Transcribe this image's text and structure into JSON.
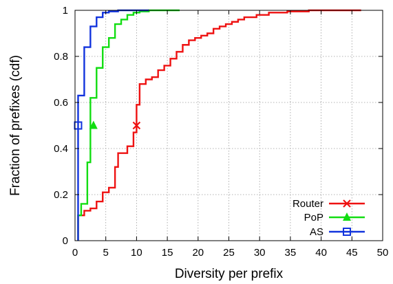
{
  "chart_data": {
    "type": "line",
    "title": "",
    "xlabel": "Diversity per prefix",
    "ylabel": "Fraction of prefixes (cdf)",
    "xlim": [
      0,
      50
    ],
    "ylim": [
      0,
      1
    ],
    "x_ticks": [
      0,
      5,
      10,
      15,
      20,
      25,
      30,
      35,
      40,
      45,
      50
    ],
    "y_ticks": [
      0,
      0.2,
      0.4,
      0.6,
      0.8,
      1
    ],
    "x_tick_labels": [
      "0",
      "5",
      "10",
      "15",
      "20",
      "25",
      "30",
      "35",
      "40",
      "45",
      "50"
    ],
    "y_tick_labels": [
      "0",
      "0.2",
      "0.4",
      "0.6",
      "0.8",
      "1"
    ],
    "grid": true,
    "legend_position": "bottom-right",
    "series": [
      {
        "name": "Router",
        "color": "#ee1111",
        "marker": "x",
        "marker_point": [
          10,
          0.5
        ],
        "points": [
          [
            0.5,
            0
          ],
          [
            0.5,
            0.11
          ],
          [
            1.5,
            0.11
          ],
          [
            1.5,
            0.13
          ],
          [
            2.5,
            0.13
          ],
          [
            2.5,
            0.14
          ],
          [
            3.5,
            0.14
          ],
          [
            3.5,
            0.17
          ],
          [
            4.5,
            0.17
          ],
          [
            4.5,
            0.21
          ],
          [
            5.5,
            0.21
          ],
          [
            5.5,
            0.23
          ],
          [
            6.5,
            0.23
          ],
          [
            6.5,
            0.32
          ],
          [
            7,
            0.32
          ],
          [
            7,
            0.38
          ],
          [
            8.5,
            0.38
          ],
          [
            8.5,
            0.41
          ],
          [
            9.5,
            0.41
          ],
          [
            9.5,
            0.47
          ],
          [
            10,
            0.47
          ],
          [
            10,
            0.59
          ],
          [
            10.5,
            0.59
          ],
          [
            10.5,
            0.68
          ],
          [
            11.5,
            0.68
          ],
          [
            11.5,
            0.7
          ],
          [
            12.5,
            0.7
          ],
          [
            12.5,
            0.71
          ],
          [
            13.5,
            0.71
          ],
          [
            13.5,
            0.74
          ],
          [
            14.5,
            0.74
          ],
          [
            14.5,
            0.76
          ],
          [
            15.5,
            0.76
          ],
          [
            15.5,
            0.79
          ],
          [
            16.5,
            0.79
          ],
          [
            16.5,
            0.82
          ],
          [
            17.5,
            0.82
          ],
          [
            17.5,
            0.85
          ],
          [
            18.5,
            0.85
          ],
          [
            18.5,
            0.87
          ],
          [
            19.5,
            0.87
          ],
          [
            19.5,
            0.88
          ],
          [
            20.5,
            0.88
          ],
          [
            20.5,
            0.89
          ],
          [
            21.5,
            0.89
          ],
          [
            21.5,
            0.9
          ],
          [
            22.5,
            0.9
          ],
          [
            22.5,
            0.92
          ],
          [
            23.5,
            0.92
          ],
          [
            23.5,
            0.93
          ],
          [
            24.5,
            0.93
          ],
          [
            24.5,
            0.94
          ],
          [
            25.5,
            0.94
          ],
          [
            25.5,
            0.95
          ],
          [
            26.5,
            0.95
          ],
          [
            26.5,
            0.96
          ],
          [
            27.5,
            0.96
          ],
          [
            27.5,
            0.97
          ],
          [
            29.5,
            0.97
          ],
          [
            29.5,
            0.98
          ],
          [
            31.5,
            0.98
          ],
          [
            31.5,
            0.99
          ],
          [
            34.5,
            0.99
          ],
          [
            34.5,
            0.995
          ],
          [
            38,
            0.995
          ],
          [
            38,
            1.0
          ],
          [
            46.5,
            1.0
          ]
        ]
      },
      {
        "name": "PoP",
        "color": "#11dd11",
        "marker": "triangle",
        "marker_point": [
          3,
          0.5
        ],
        "points": [
          [
            0.5,
            0
          ],
          [
            0.5,
            0.11
          ],
          [
            1,
            0.11
          ],
          [
            1,
            0.16
          ],
          [
            2,
            0.16
          ],
          [
            2,
            0.34
          ],
          [
            2.5,
            0.34
          ],
          [
            2.5,
            0.62
          ],
          [
            3.5,
            0.62
          ],
          [
            3.5,
            0.75
          ],
          [
            4.5,
            0.75
          ],
          [
            4.5,
            0.84
          ],
          [
            5.5,
            0.84
          ],
          [
            5.5,
            0.88
          ],
          [
            6.5,
            0.88
          ],
          [
            6.5,
            0.94
          ],
          [
            7.5,
            0.94
          ],
          [
            7.5,
            0.96
          ],
          [
            8.5,
            0.96
          ],
          [
            8.5,
            0.98
          ],
          [
            9.5,
            0.98
          ],
          [
            9.5,
            0.99
          ],
          [
            10.5,
            0.99
          ],
          [
            10.5,
            0.995
          ],
          [
            12,
            0.995
          ],
          [
            12,
            1.0
          ],
          [
            17,
            1.0
          ]
        ]
      },
      {
        "name": "AS",
        "color": "#1133dd",
        "marker": "square",
        "marker_point": [
          0.5,
          0.5
        ],
        "points": [
          [
            0.5,
            0
          ],
          [
            0.5,
            0.63
          ],
          [
            1.5,
            0.63
          ],
          [
            1.5,
            0.84
          ],
          [
            2.5,
            0.84
          ],
          [
            2.5,
            0.93
          ],
          [
            3.5,
            0.93
          ],
          [
            3.5,
            0.97
          ],
          [
            4.5,
            0.97
          ],
          [
            4.5,
            0.99
          ],
          [
            5.5,
            0.99
          ],
          [
            5.5,
            0.995
          ],
          [
            7,
            0.995
          ],
          [
            7,
            1.0
          ],
          [
            12,
            1.0
          ]
        ]
      }
    ]
  }
}
